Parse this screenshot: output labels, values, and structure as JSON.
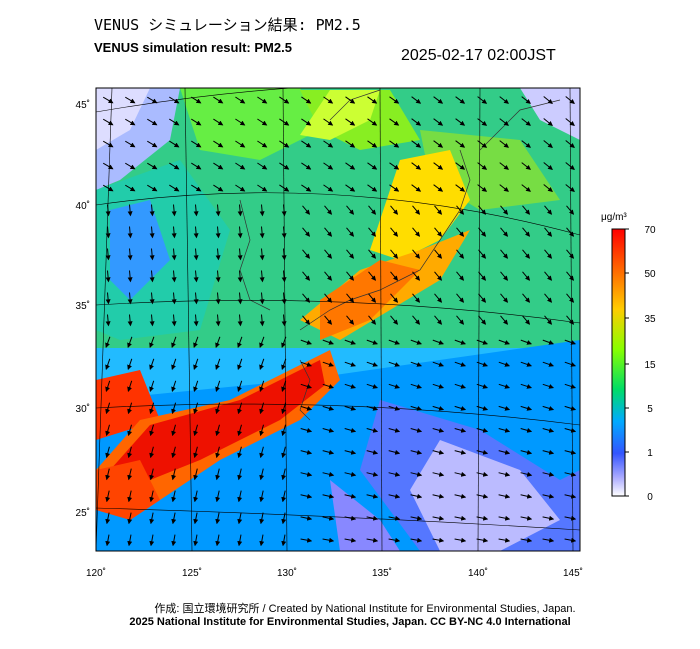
{
  "header": {
    "title_ja": "VENUS シミュレーション結果: PM2.5",
    "title_en": "VENUS simulation result: PM2.5",
    "timestamp": "2025-02-17 02:00JST"
  },
  "map": {
    "x_ticks": [
      "120˚",
      "125˚",
      "130˚",
      "135˚",
      "140˚",
      "145˚"
    ],
    "y_ticks": [
      "45˚",
      "40˚",
      "35˚",
      "30˚",
      "25˚"
    ],
    "colorbar": {
      "unit": "μg/m³",
      "ticks": [
        "70",
        "50",
        "35",
        "15",
        "5",
        "1",
        "0"
      ],
      "colors": [
        "#ff0000",
        "#ff8000",
        "#ffff00",
        "#66ff00",
        "#00dd66",
        "#00aaff",
        "#0055ff",
        "#9999ff",
        "#ffffff"
      ]
    }
  },
  "footer": {
    "credit": "作成: 国立環境研究所 / Created by National Institute for Environmental Studies, Japan.",
    "license": "2025 National Institute for Environmental Studies, Japan. CC BY-NC 4.0 International"
  }
}
